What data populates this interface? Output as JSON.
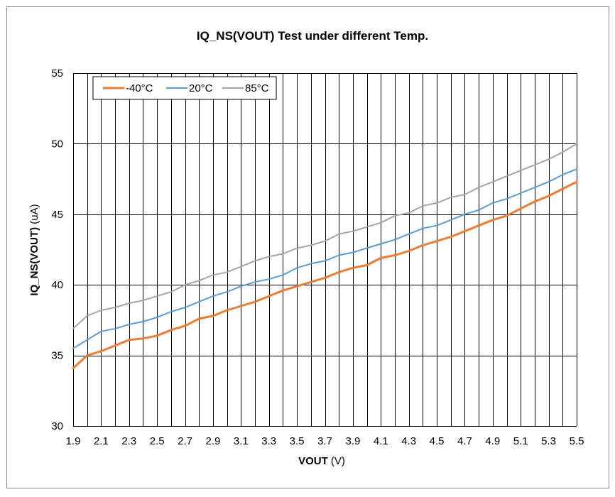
{
  "chart_data": {
    "type": "line",
    "title": "IQ_NS(VOUT) Test under different Temp.",
    "xlabel": "VOUT",
    "xlabel_unit": " (V)",
    "ylabel": "IQ_NS(VOUT)",
    "ylabel_unit": " (uA)",
    "xlim": [
      1.9,
      5.5
    ],
    "ylim": [
      30,
      55
    ],
    "y_ticks": [
      30,
      35,
      40,
      45,
      50,
      55
    ],
    "x_tick_labels": [
      "1.9",
      "2.1",
      "2.3",
      "2.5",
      "2.7",
      "2.9",
      "3.1",
      "3.3",
      "3.5",
      "3.7",
      "3.9",
      "4.1",
      "4.3",
      "4.5",
      "4.7",
      "4.9",
      "5.1",
      "5.3",
      "5.5"
    ],
    "x_vertical_grid_step": 0.1,
    "legend_position": "top-left",
    "x": [
      1.9,
      2.0,
      2.1,
      2.2,
      2.3,
      2.4,
      2.5,
      2.6,
      2.7,
      2.8,
      2.9,
      3.0,
      3.1,
      3.2,
      3.3,
      3.4,
      3.5,
      3.6,
      3.7,
      3.8,
      3.9,
      4.0,
      4.1,
      4.2,
      4.3,
      4.4,
      4.5,
      4.6,
      4.7,
      4.8,
      4.9,
      5.0,
      5.1,
      5.2,
      5.3,
      5.4,
      5.5
    ],
    "series": [
      {
        "name": "-40°C",
        "color": "#ED7D31",
        "width": 3,
        "values": [
          34.1,
          35.0,
          35.3,
          35.7,
          36.1,
          36.2,
          36.4,
          36.8,
          37.1,
          37.6,
          37.8,
          38.2,
          38.5,
          38.8,
          39.2,
          39.6,
          39.9,
          40.2,
          40.5,
          40.9,
          41.2,
          41.4,
          41.9,
          42.1,
          42.4,
          42.8,
          43.1,
          43.4,
          43.8,
          44.2,
          44.6,
          44.9,
          45.4,
          45.9,
          46.3,
          46.8,
          47.3
        ]
      },
      {
        "name": "20°C",
        "color": "#5B9BD5",
        "width": 2,
        "values": [
          35.5,
          36.1,
          36.7,
          36.9,
          37.2,
          37.4,
          37.7,
          38.1,
          38.4,
          38.8,
          39.2,
          39.5,
          39.9,
          40.2,
          40.4,
          40.7,
          41.2,
          41.5,
          41.7,
          42.1,
          42.3,
          42.6,
          42.9,
          43.2,
          43.6,
          44.0,
          44.2,
          44.6,
          45.0,
          45.3,
          45.8,
          46.1,
          46.5,
          46.9,
          47.3,
          47.8,
          48.2
        ]
      },
      {
        "name": "85°C",
        "color": "#A5A5A5",
        "width": 2,
        "values": [
          36.9,
          37.8,
          38.2,
          38.4,
          38.7,
          38.9,
          39.2,
          39.5,
          40.0,
          40.3,
          40.7,
          40.9,
          41.3,
          41.7,
          42.0,
          42.2,
          42.6,
          42.8,
          43.1,
          43.6,
          43.8,
          44.1,
          44.4,
          44.9,
          45.1,
          45.6,
          45.8,
          46.2,
          46.4,
          46.9,
          47.3,
          47.7,
          48.1,
          48.5,
          48.9,
          49.4,
          50.0
        ]
      }
    ]
  }
}
